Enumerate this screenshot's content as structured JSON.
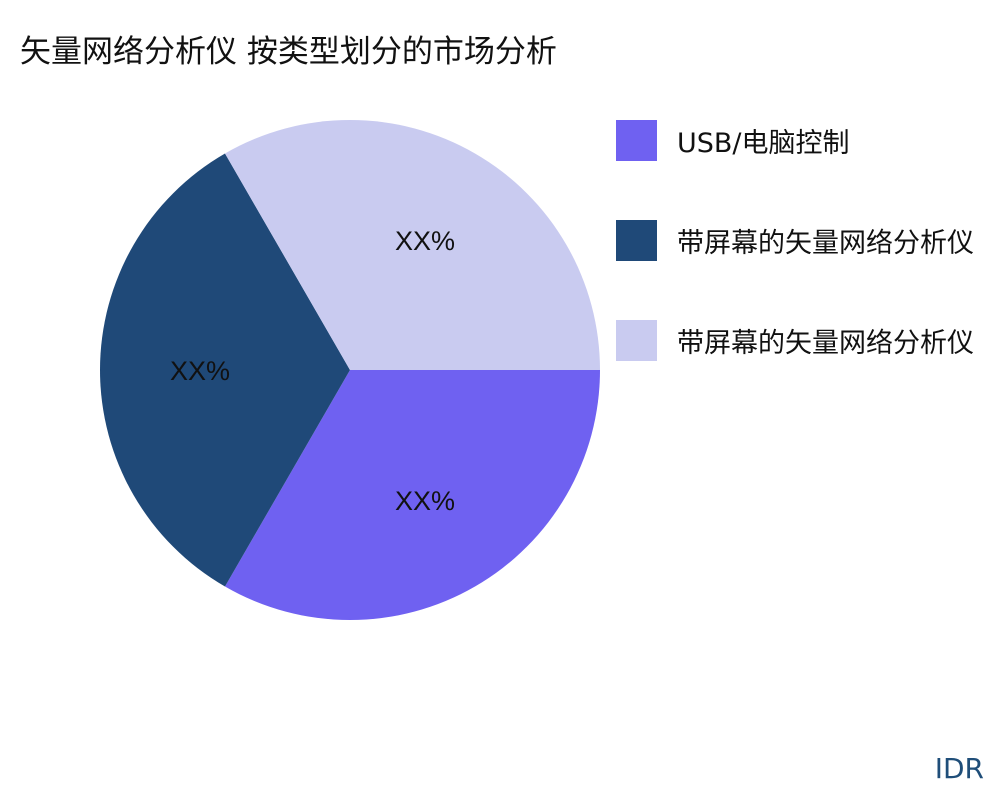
{
  "chart_data": {
    "type": "pie",
    "title": "矢量网络分析仪 按类型划分的市场分析",
    "slices": [
      {
        "label": "USB/电脑控制",
        "value": 33.33,
        "data_label": "XX%",
        "color": "#6f61f1"
      },
      {
        "label": "带屏幕的矢量网络分析仪",
        "value": 33.33,
        "data_label": "XX%",
        "color": "#1f4978"
      },
      {
        "label": "带屏幕的矢量网络分析仪",
        "value": 33.33,
        "data_label": "XX%",
        "color": "#c9cbf0"
      }
    ],
    "legend_position": "right"
  },
  "logo": "IDR"
}
